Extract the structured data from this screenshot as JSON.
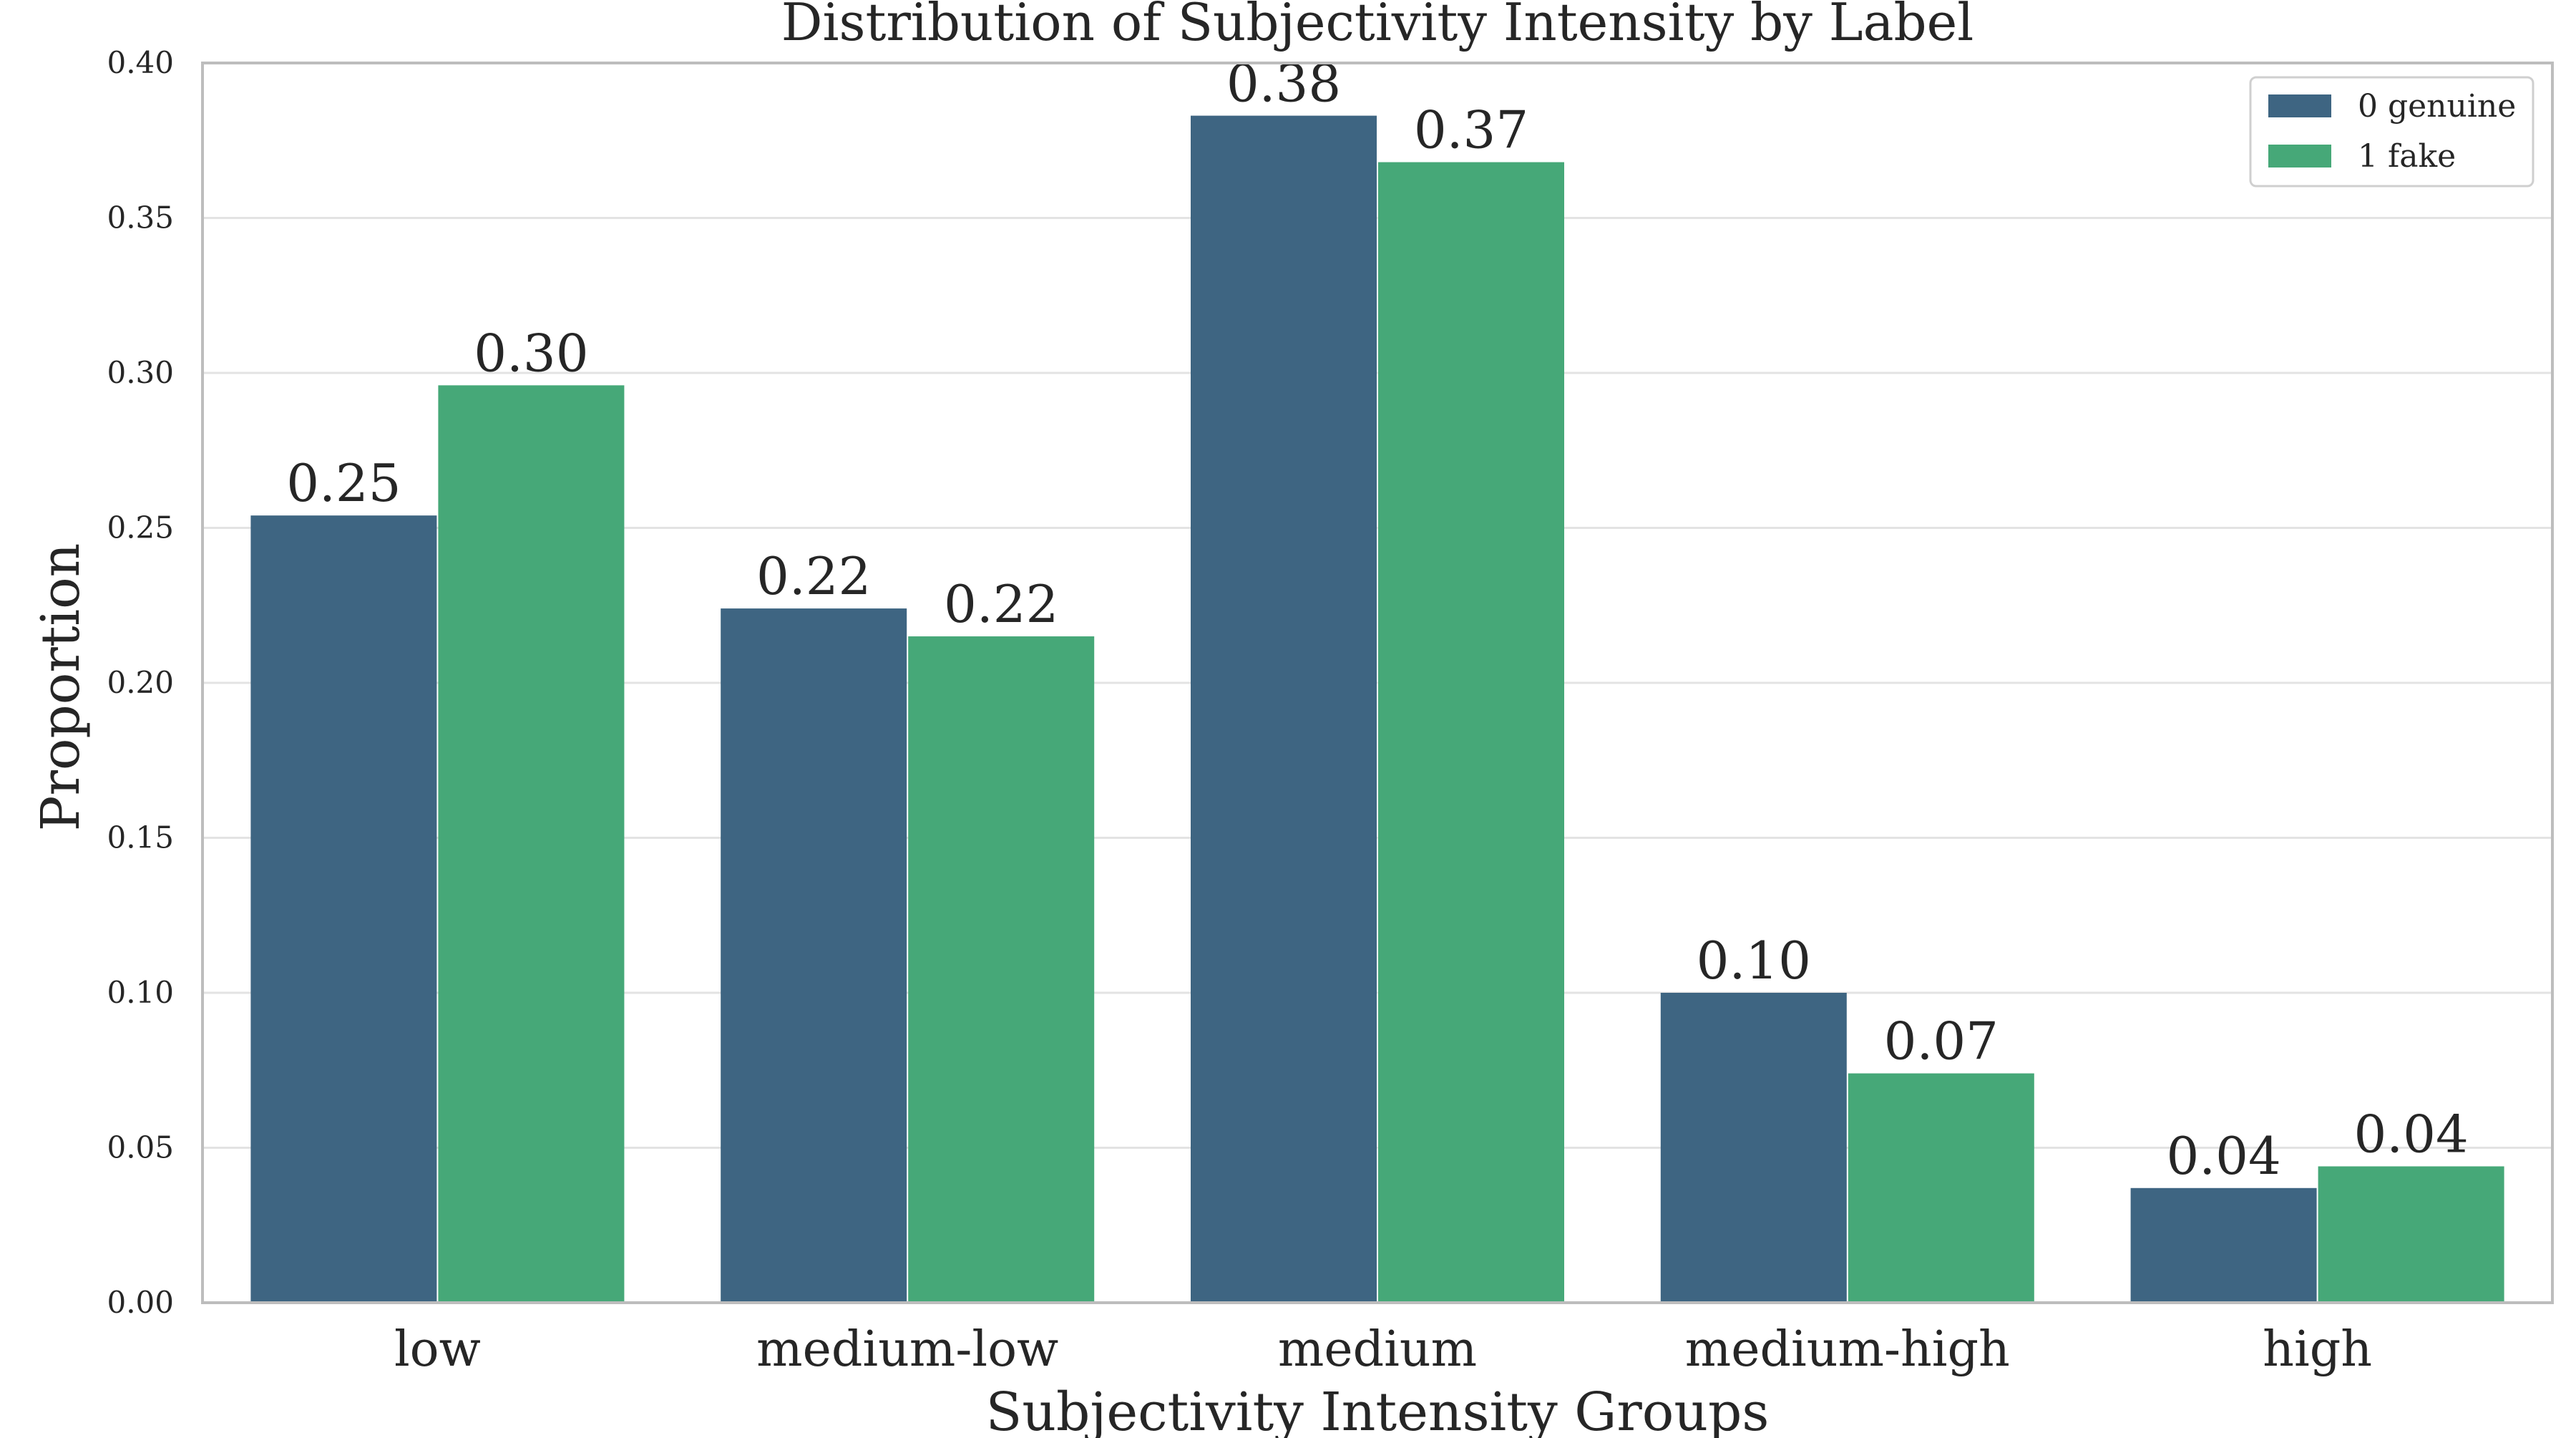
{
  "chart_data": {
    "type": "bar",
    "title": "Distribution of Subjectivity Intensity by Label",
    "xlabel": "Subjectivity Intensity Groups",
    "ylabel": "Proportion",
    "categories": [
      "low",
      "medium-low",
      "medium",
      "medium-high",
      "high"
    ],
    "series": [
      {
        "name": "0 genuine",
        "color": "#3e6582",
        "values": [
          0.254,
          0.224,
          0.383,
          0.1,
          0.037
        ],
        "labels": [
          "0.25",
          "0.22",
          "0.38",
          "0.10",
          "0.04"
        ]
      },
      {
        "name": "1 fake",
        "color": "#46a878",
        "values": [
          0.296,
          0.215,
          0.368,
          0.074,
          0.044
        ],
        "labels": [
          "0.30",
          "0.22",
          "0.37",
          "0.07",
          "0.04"
        ]
      }
    ],
    "ylim": [
      0,
      0.4
    ],
    "yticks": [
      "0.00",
      "0.05",
      "0.10",
      "0.15",
      "0.20",
      "0.25",
      "0.30",
      "0.35",
      "0.40"
    ],
    "grid": true,
    "legend_position": "top-right"
  }
}
